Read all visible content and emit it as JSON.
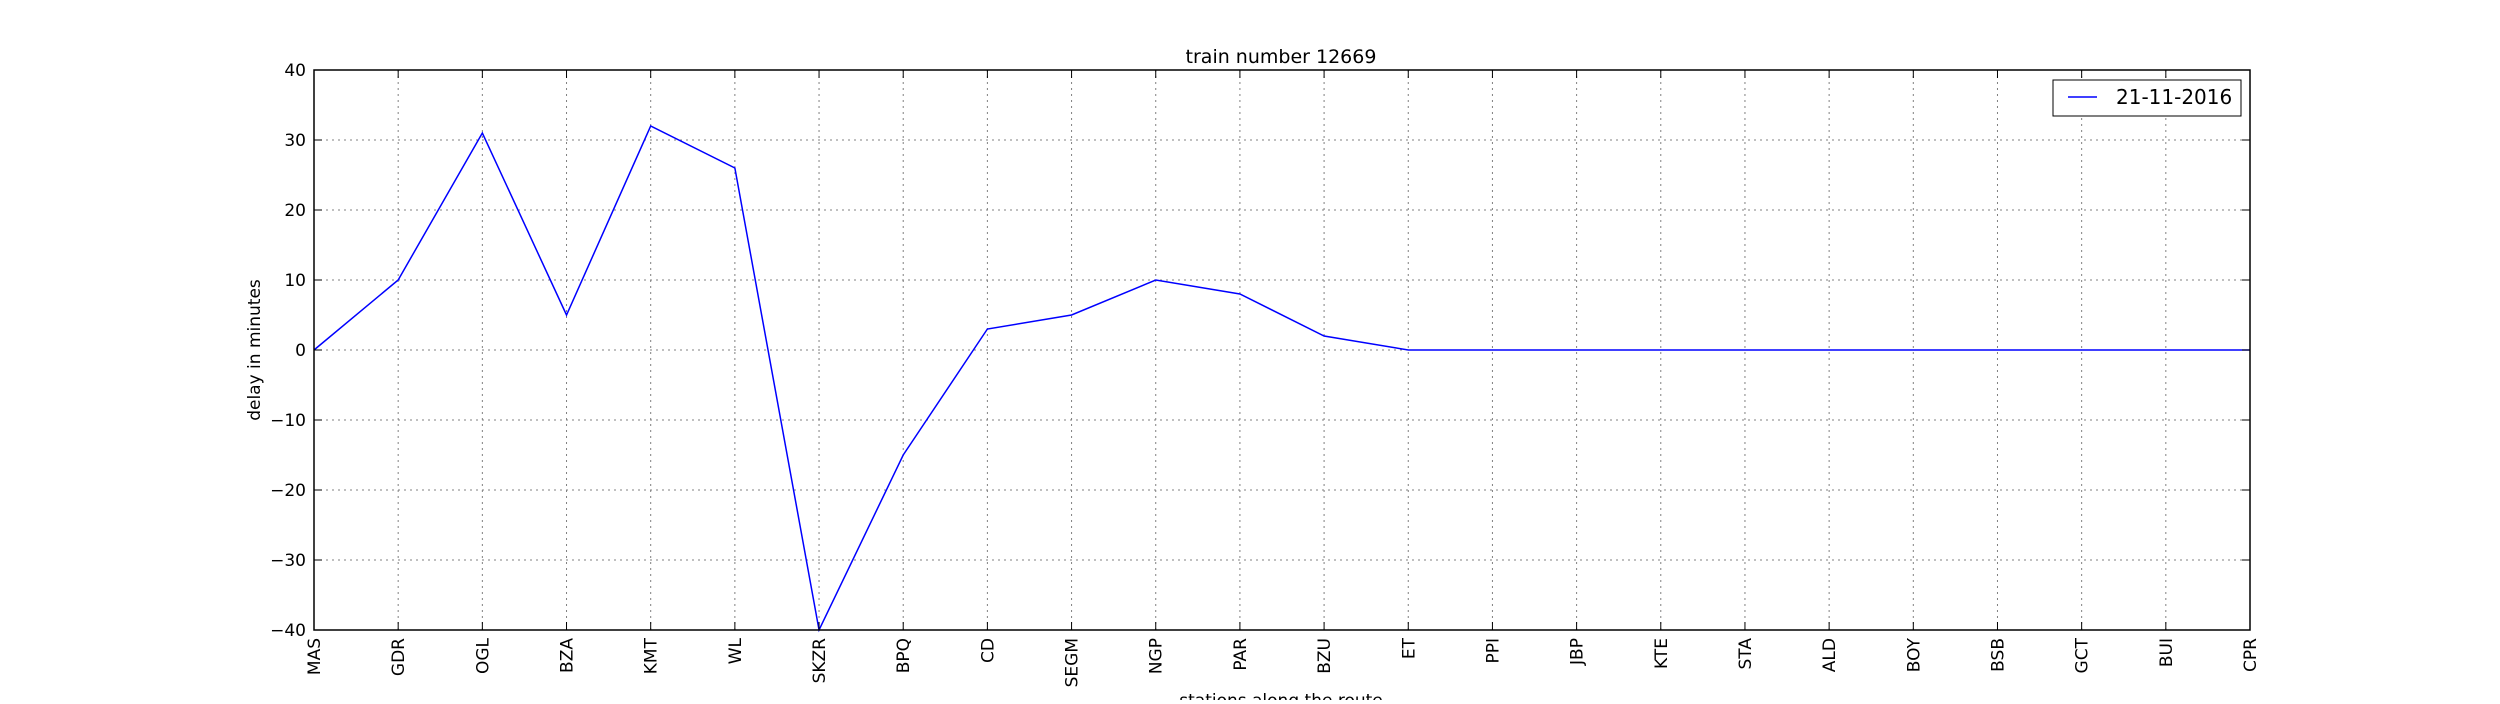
{
  "chart_data": {
    "type": "line",
    "title": "train number 12669",
    "xlabel": "stations along the route",
    "ylabel": "delay in minutes",
    "categories": [
      "MAS",
      "GDR",
      "OGL",
      "BZA",
      "KMT",
      "WL",
      "SKZR",
      "BPQ",
      "CD",
      "SEGM",
      "NGP",
      "PAR",
      "BZU",
      "ET",
      "PPI",
      "JBP",
      "KTE",
      "STA",
      "ALD",
      "BOY",
      "BSB",
      "GCT",
      "BUI",
      "CPR"
    ],
    "series": [
      {
        "name": "21-11-2016",
        "color": "#0000ff",
        "values": [
          0,
          10,
          31,
          5,
          32,
          26,
          -40,
          -15,
          3,
          5,
          10,
          8,
          2,
          0,
          0,
          0,
          0,
          0,
          0,
          0,
          0,
          0,
          0,
          0
        ]
      }
    ],
    "ylim": [
      -40,
      40
    ],
    "yticks": [
      -40,
      -30,
      -20,
      -10,
      0,
      10,
      20,
      30,
      40
    ],
    "ytick_labels": [
      "−40",
      "−30",
      "−20",
      "−10",
      "0",
      "10",
      "20",
      "30",
      "40"
    ],
    "grid": true,
    "legend_position": "top-right"
  }
}
